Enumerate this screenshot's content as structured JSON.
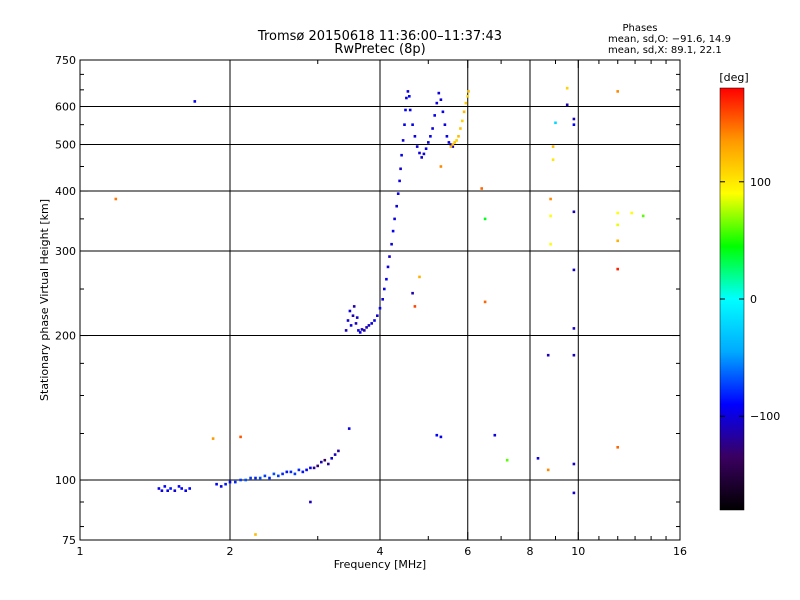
{
  "chart_data": {
    "type": "scatter",
    "title": "Tromsø 20150618 11:36:00–11:37:43",
    "subtitle": "RwPretec (8p)",
    "xlabel": "Frequency [MHz]",
    "ylabel": "Stationary phase Virtual Height [km]",
    "x_scale": "log",
    "y_scale": "log",
    "xlim": [
      1,
      16
    ],
    "ylim": [
      75,
      750
    ],
    "x_ticks": [
      1,
      2,
      4,
      6,
      8,
      10,
      16
    ],
    "y_ticks": [
      75,
      100,
      200,
      300,
      400,
      500,
      600,
      750
    ],
    "x_tick_labels": [
      "1",
      "2",
      "4",
      "6",
      "8",
      "10",
      "16"
    ],
    "y_tick_labels": [
      "75",
      "100",
      "200",
      "300",
      "400",
      "500",
      "600",
      "750"
    ],
    "grid": true,
    "stats_header": "Phases",
    "stats": [
      "mean, sd,O: −91.6, 14.9",
      "mean, sd,X:  89.1, 22.1"
    ],
    "colorbar": {
      "label": "[deg]",
      "range": [
        -180,
        180
      ],
      "ticks": [
        100,
        0,
        -100
      ],
      "tick_labels": [
        "100",
        "0",
        "−100"
      ],
      "colors": [
        "#000000",
        "#3a0060",
        "#0000ff",
        "#00aaff",
        "#00ffff",
        "#00ff00",
        "#ffff00",
        "#ff9900",
        "#ff0000"
      ]
    },
    "series": [
      {
        "points": [
          [
            1.44,
            96
          ],
          [
            1.46,
            95
          ],
          [
            1.48,
            97
          ],
          [
            1.5,
            95
          ],
          [
            1.52,
            96
          ],
          [
            1.55,
            95
          ],
          [
            1.58,
            97
          ],
          [
            1.6,
            96
          ],
          [
            1.63,
            95
          ],
          [
            1.66,
            96
          ],
          [
            1.88,
            98
          ],
          [
            1.92,
            97
          ],
          [
            1.96,
            98
          ],
          [
            2.0,
            99
          ],
          [
            2.05,
            99
          ],
          [
            2.1,
            100
          ],
          [
            2.15,
            100
          ],
          [
            2.2,
            101
          ],
          [
            2.25,
            101
          ],
          [
            2.3,
            101
          ],
          [
            2.35,
            102
          ],
          [
            2.4,
            101
          ],
          [
            2.45,
            103
          ],
          [
            2.5,
            102
          ],
          [
            2.55,
            103
          ],
          [
            2.6,
            104
          ],
          [
            2.65,
            104
          ],
          [
            2.7,
            103
          ],
          [
            2.75,
            105
          ],
          [
            2.8,
            104
          ],
          [
            2.85,
            105
          ],
          [
            2.9,
            106
          ],
          [
            2.95,
            106
          ],
          [
            3.0,
            107
          ],
          [
            3.05,
            109
          ],
          [
            3.1,
            110
          ],
          [
            3.15,
            108
          ],
          [
            3.2,
            111
          ],
          [
            3.25,
            113
          ],
          [
            3.3,
            115
          ],
          [
            3.42,
            205
          ],
          [
            3.45,
            215
          ],
          [
            3.48,
            225
          ],
          [
            3.5,
            210
          ],
          [
            3.53,
            220
          ],
          [
            3.55,
            230
          ],
          [
            3.58,
            212
          ],
          [
            3.6,
            218
          ],
          [
            3.62,
            205
          ],
          [
            3.65,
            203
          ],
          [
            3.68,
            206
          ],
          [
            3.72,
            205
          ],
          [
            3.76,
            208
          ],
          [
            3.8,
            210
          ],
          [
            3.85,
            212
          ],
          [
            3.9,
            215
          ],
          [
            3.95,
            220
          ],
          [
            4.0,
            228
          ],
          [
            4.05,
            238
          ],
          [
            4.08,
            250
          ],
          [
            4.12,
            262
          ],
          [
            4.15,
            278
          ],
          [
            4.18,
            292
          ],
          [
            4.22,
            310
          ],
          [
            4.25,
            330
          ],
          [
            4.28,
            350
          ],
          [
            4.32,
            372
          ],
          [
            4.35,
            395
          ],
          [
            4.38,
            420
          ],
          [
            4.4,
            445
          ],
          [
            4.42,
            475
          ],
          [
            4.45,
            510
          ],
          [
            4.48,
            550
          ],
          [
            4.5,
            590
          ],
          [
            4.52,
            625
          ],
          [
            4.55,
            645
          ],
          [
            4.58,
            630
          ],
          [
            4.6,
            590
          ],
          [
            4.65,
            550
          ],
          [
            4.7,
            520
          ],
          [
            4.75,
            495
          ],
          [
            4.8,
            480
          ],
          [
            4.85,
            470
          ],
          [
            4.9,
            478
          ],
          [
            4.95,
            490
          ],
          [
            5.0,
            505
          ],
          [
            5.05,
            520
          ],
          [
            5.1,
            540
          ],
          [
            5.15,
            575
          ],
          [
            5.2,
            610
          ],
          [
            5.25,
            640
          ],
          [
            5.3,
            620
          ],
          [
            5.35,
            585
          ],
          [
            5.4,
            550
          ],
          [
            5.45,
            520
          ],
          [
            5.5,
            505
          ],
          [
            5.55,
            500
          ],
          [
            5.6,
            495
          ],
          [
            1.7,
            615
          ],
          [
            3.47,
            128
          ],
          [
            5.2,
            124
          ],
          [
            5.3,
            123
          ],
          [
            6.8,
            124
          ],
          [
            8.3,
            111
          ],
          [
            8.7,
            182
          ],
          [
            9.5,
            605
          ],
          [
            9.8,
            565
          ],
          [
            9.8,
            550
          ],
          [
            9.8,
            362
          ],
          [
            9.8,
            274
          ],
          [
            9.8,
            207
          ],
          [
            9.8,
            182
          ],
          [
            9.8,
            108
          ],
          [
            9.8,
            94
          ],
          [
            2.9,
            90
          ],
          [
            4.65,
            245
          ]
        ],
        "phases": [
          -95,
          -100,
          -90,
          -95,
          -85,
          -100,
          -95,
          -90,
          -95,
          -90,
          -90,
          -95,
          -85,
          -90,
          -80,
          -75,
          -70,
          -75,
          -80,
          -70,
          -75,
          -80,
          -70,
          -75,
          -80,
          -85,
          -80,
          -75,
          -80,
          -85,
          -90,
          -95,
          -120,
          -130,
          -110,
          -140,
          -120,
          -100,
          -110,
          -120,
          -110,
          -105,
          -100,
          -100,
          -110,
          -115,
          -110,
          -105,
          -100,
          -100,
          -110,
          -115,
          -110,
          -105,
          -100,
          -95,
          -100,
          -95,
          -100,
          -95,
          -95,
          -100,
          -105,
          -100,
          -95,
          -100,
          -100,
          -95,
          -100,
          -105,
          -95,
          -100,
          -95,
          -90,
          -100,
          -100,
          -90,
          -95,
          -95,
          -100,
          -100,
          -100,
          -105,
          -100,
          -95,
          -100,
          -95,
          -100,
          -95,
          -100,
          -100,
          -100,
          -95,
          -100,
          -95,
          -100,
          -95,
          -100,
          -95,
          -100,
          -90,
          -95,
          -100,
          -100,
          -110,
          -115,
          -110,
          -90,
          -110,
          -105,
          -105,
          -110,
          -105,
          -105,
          -110,
          -115
        ]
      },
      {
        "points": [
          [
            5.6,
            500
          ],
          [
            5.65,
            505
          ],
          [
            5.7,
            510
          ],
          [
            5.75,
            520
          ],
          [
            5.8,
            540
          ],
          [
            5.85,
            560
          ],
          [
            5.9,
            585
          ],
          [
            5.95,
            610
          ],
          [
            6.0,
            630
          ],
          [
            6.02,
            645
          ],
          [
            5.55,
            495
          ],
          [
            1.18,
            385
          ],
          [
            1.85,
            122
          ],
          [
            2.1,
            123
          ],
          [
            2.25,
            77
          ],
          [
            4.7,
            230
          ],
          [
            4.8,
            265
          ],
          [
            5.3,
            450
          ],
          [
            6.4,
            405
          ],
          [
            6.5,
            350
          ],
          [
            6.5,
            235
          ],
          [
            7.2,
            110
          ],
          [
            8.7,
            105
          ],
          [
            8.8,
            385
          ],
          [
            8.8,
            355
          ],
          [
            8.8,
            310
          ],
          [
            8.9,
            495
          ],
          [
            8.9,
            465
          ],
          [
            9.5,
            655
          ],
          [
            9.0,
            555
          ],
          [
            12.0,
            645
          ],
          [
            12.0,
            360
          ],
          [
            12.0,
            340
          ],
          [
            12.0,
            315
          ],
          [
            12.0,
            275
          ],
          [
            12.0,
            117
          ],
          [
            12.8,
            360
          ],
          [
            13.5,
            355
          ]
        ],
        "phases": [
          120,
          115,
          110,
          120,
          115,
          110,
          120,
          115,
          110,
          120,
          120,
          145,
          135,
          155,
          120,
          160,
          125,
          140,
          150,
          40,
          150,
          60,
          140,
          140,
          90,
          90,
          120,
          100,
          110,
          -20,
          140,
          90,
          85,
          125,
          170,
          150,
          90,
          60
        ]
      }
    ]
  }
}
